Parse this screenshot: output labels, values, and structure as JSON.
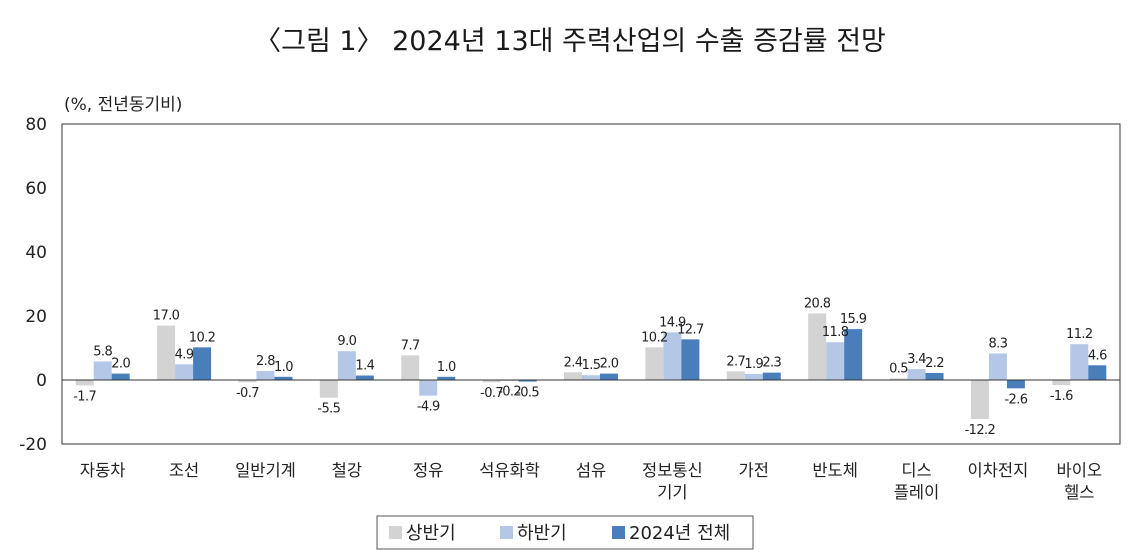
{
  "chart_data": {
    "type": "bar",
    "title": "〈그림 1〉 2024년 13대 주력산업의 수출 증감률 전망",
    "unit_label": "(%, 전년동기비)",
    "ylim": [
      -20,
      80
    ],
    "yticks": [
      80,
      60,
      40,
      20,
      0,
      -20
    ],
    "grid": false,
    "legend_position": "bottom",
    "categories": [
      [
        "자동차"
      ],
      [
        "조선"
      ],
      [
        "일반기계"
      ],
      [
        "철강"
      ],
      [
        "정유"
      ],
      [
        "석유화학"
      ],
      [
        "섬유"
      ],
      [
        "정보통신",
        "기기"
      ],
      [
        "가전"
      ],
      [
        "반도체"
      ],
      [
        "디스",
        "플레이"
      ],
      [
        "이차전지"
      ],
      [
        "바이오",
        "헬스"
      ]
    ],
    "series": [
      {
        "name": "상반기",
        "color": "#d3d3d3",
        "values": [
          -1.7,
          17.0,
          -0.7,
          -5.5,
          7.7,
          -0.7,
          2.4,
          10.2,
          2.7,
          20.8,
          0.5,
          -12.2,
          -1.6
        ],
        "labels": [
          "-1.7",
          "17.0",
          "-0.7",
          "-5.5",
          "7.7",
          "-0.7",
          "2.4",
          "10.2",
          "2.7",
          "20.8",
          "0.5",
          "-12.2",
          "-1.6"
        ]
      },
      {
        "name": "하반기",
        "color": "#b4c7e7",
        "values": [
          5.8,
          4.9,
          2.8,
          9.0,
          -4.9,
          -0.2,
          1.5,
          14.9,
          1.9,
          11.8,
          3.4,
          8.3,
          11.2
        ],
        "labels": [
          "5.8",
          "4.9",
          "2.8",
          "9.0",
          "-4.9",
          "-0.2",
          "1.5",
          "14.9",
          "1.9",
          "11.8",
          "3.4",
          "8.3",
          "11.2"
        ]
      },
      {
        "name": "2024년 전체",
        "color": "#4a7ebb",
        "values": [
          2.0,
          10.2,
          1.0,
          1.4,
          1.0,
          -0.5,
          2.0,
          12.7,
          2.3,
          15.9,
          2.2,
          -2.6,
          4.6
        ],
        "labels": [
          "2.0",
          "10.2",
          "1.0",
          "1.4",
          "1.0",
          "-0.5",
          "2.0",
          "12.7",
          "2.3",
          "15.9",
          "2.2",
          "-2.6",
          "4.6"
        ]
      }
    ]
  }
}
